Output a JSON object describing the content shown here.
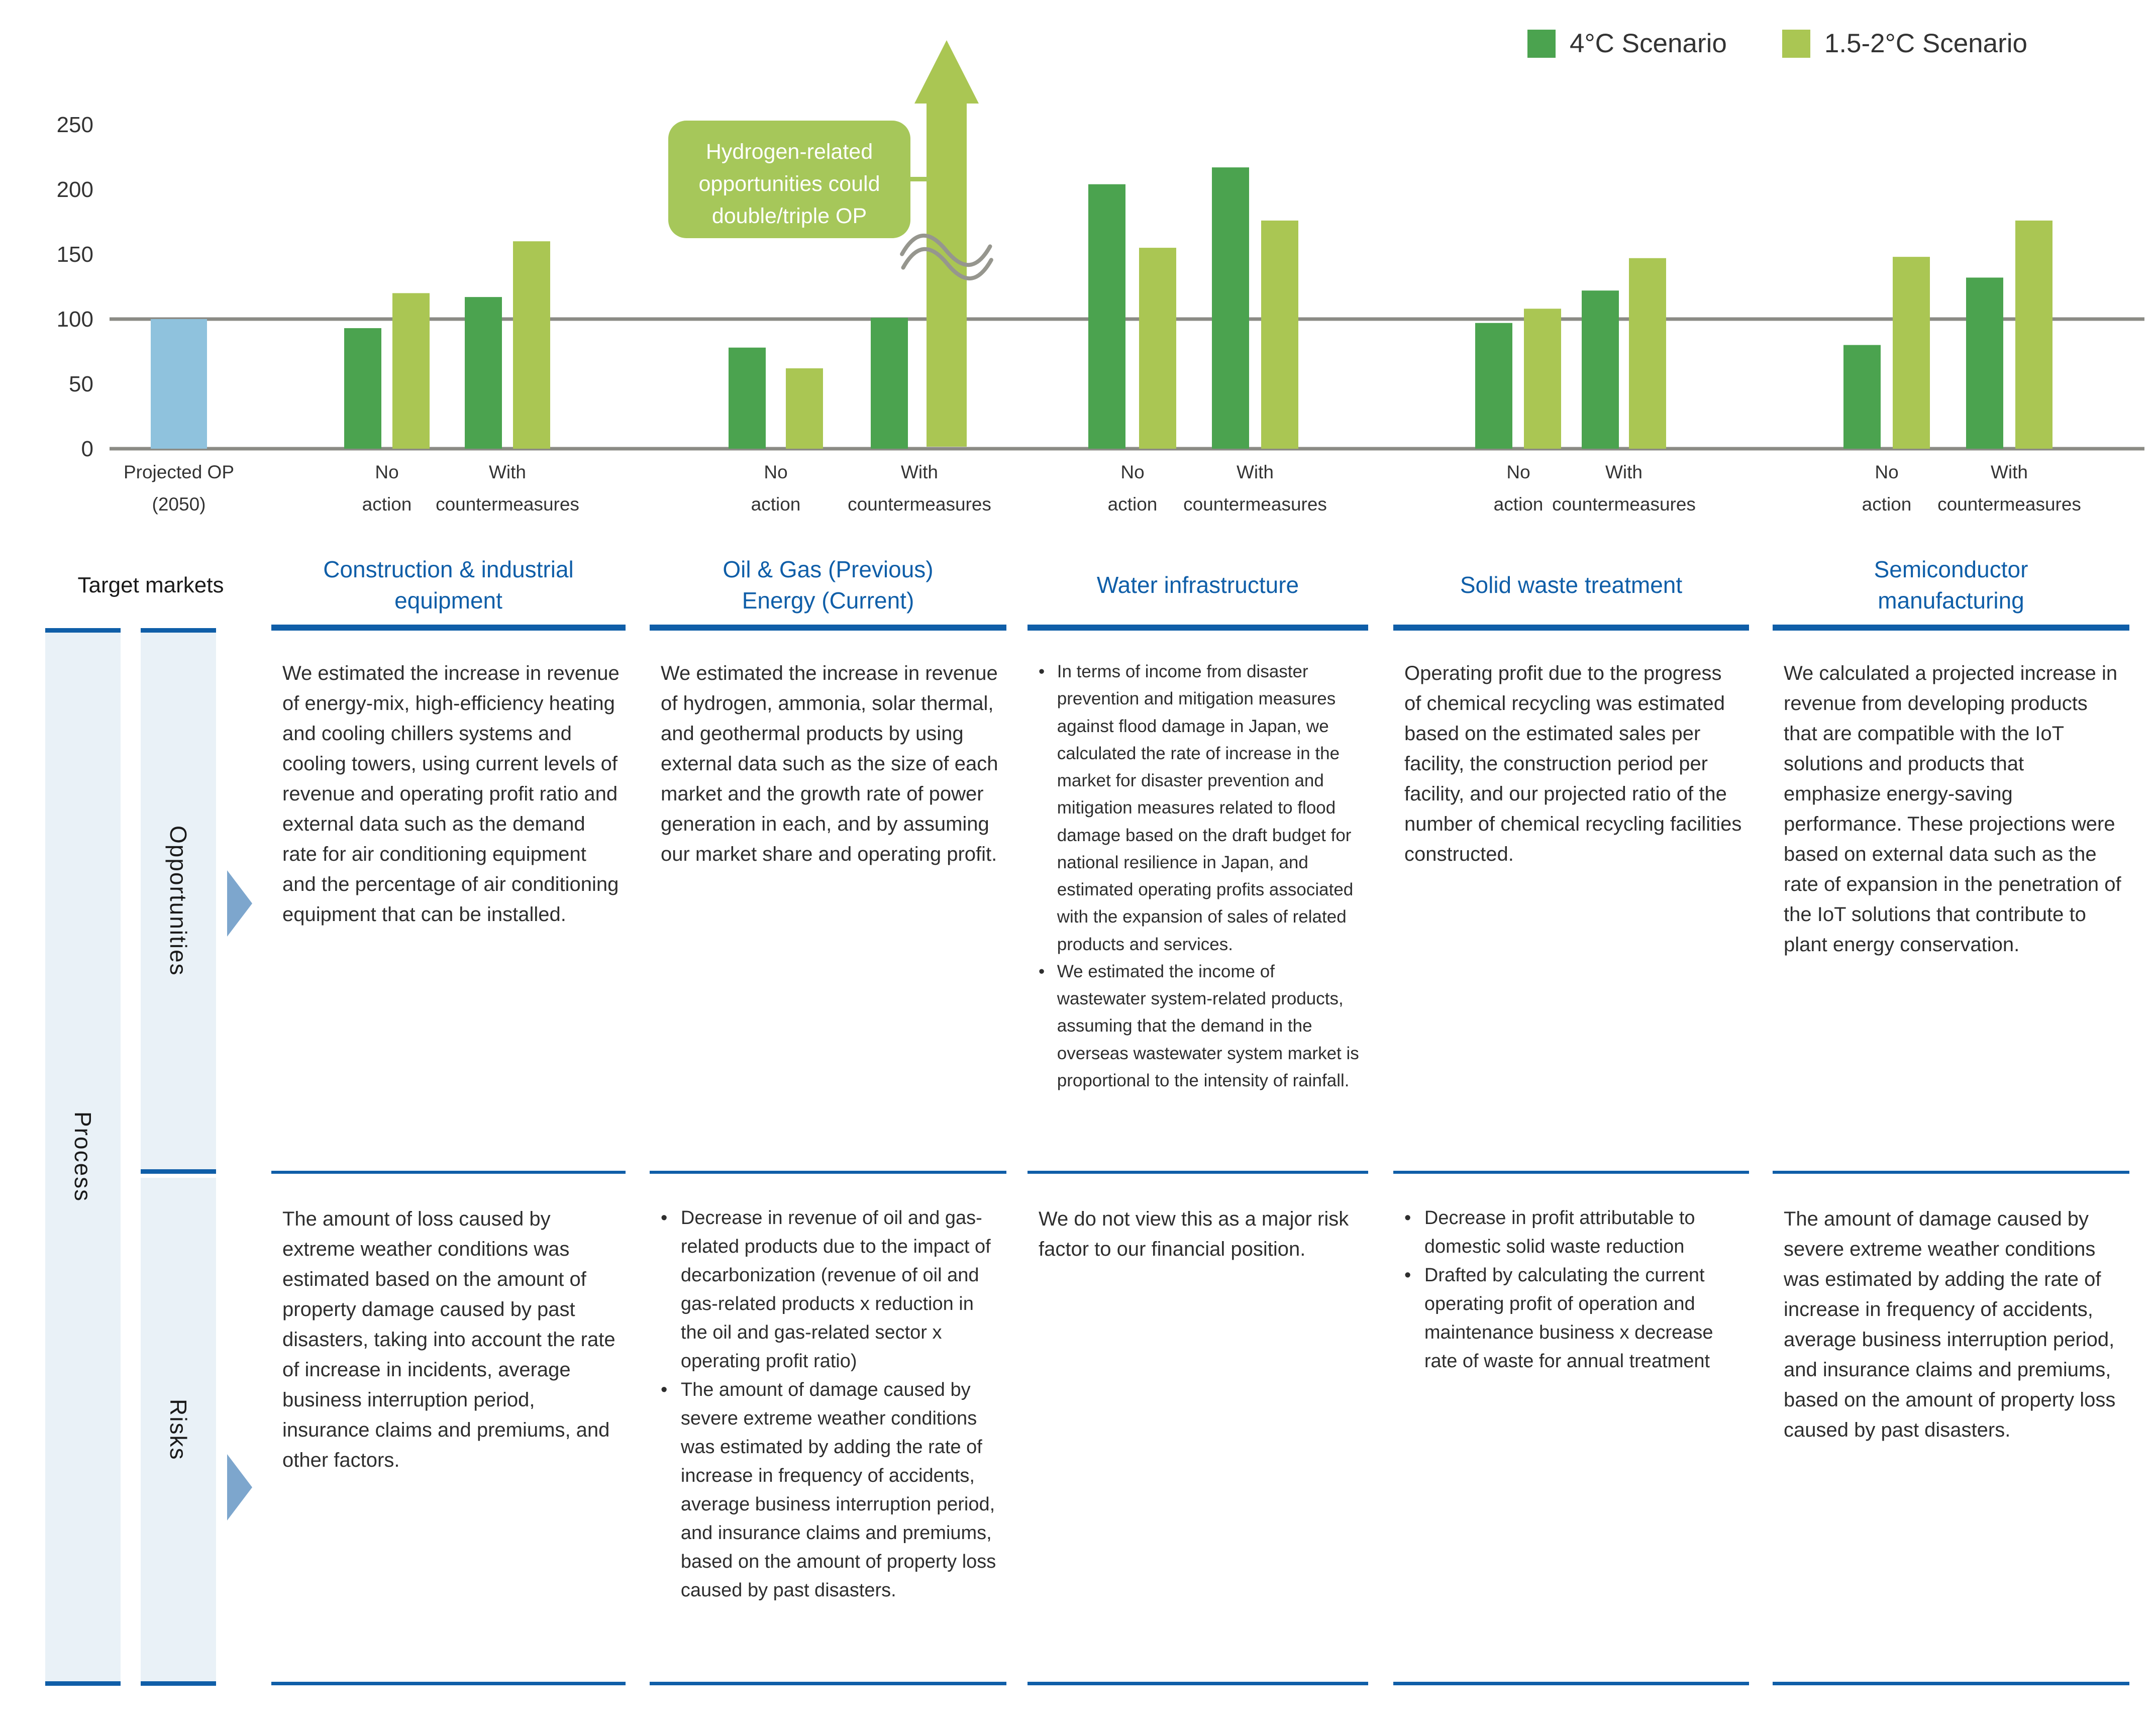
{
  "colors": {
    "scenario_4c": "#4ba34f",
    "scenario_15_2c": "#aac653",
    "projected_op_bar": "#8fc2dd",
    "reference_line": "#8b8b85",
    "table_accent_blue": "#0f5ea8",
    "row_label_background": "#e9f1f7",
    "pointer_arrow_blue": "#7da6cd",
    "callout_green": "#a6c75a"
  },
  "legend": {
    "items": [
      {
        "label": "4°C Scenario",
        "color": "#4ba34f"
      },
      {
        "label": "1.5-2°C Scenario",
        "color": "#aac653"
      }
    ]
  },
  "chart_data": {
    "type": "bar",
    "ylim": [
      0,
      260
    ],
    "yticks": [
      0,
      50,
      100,
      150,
      200,
      250
    ],
    "reference_line": 100,
    "grid": false,
    "legend_position": "top-right",
    "series": [
      {
        "name": "4°C Scenario",
        "color": "#4ba34f"
      },
      {
        "name": "1.5-2°C Scenario",
        "color": "#aac653"
      }
    ],
    "baseline_bar": {
      "label_lines": [
        "Projected OP",
        "(2050)"
      ],
      "value": 100,
      "color": "#8fc2dd"
    },
    "condition_labels": {
      "no_action": [
        "No",
        "action"
      ],
      "with_countermeasures": [
        "With",
        "countermeasures"
      ]
    },
    "groups": [
      {
        "market": "Construction & industrial equipment",
        "no_action": {
          "4c": 93,
          "15_2c": 120
        },
        "with_countermeasures": {
          "4c": 117,
          "15_2c": 160
        }
      },
      {
        "market": "Oil & Gas (Previous) Energy (Current)",
        "no_action": {
          "4c": 78,
          "15_2c": 62
        },
        "with_countermeasures": {
          "4c": 101,
          "15_2c": "off-scale-arrow"
        }
      },
      {
        "market": "Water infrastructure",
        "no_action": {
          "4c": 204,
          "15_2c": 155
        },
        "with_countermeasures": {
          "4c": 217,
          "15_2c": 176
        }
      },
      {
        "market": "Solid waste treatment",
        "no_action": {
          "4c": 97,
          "15_2c": 108
        },
        "with_countermeasures": {
          "4c": 122,
          "15_2c": 147
        }
      },
      {
        "market": "Semiconductor manufacturing",
        "no_action": {
          "4c": 80,
          "15_2c": 148
        },
        "with_countermeasures": {
          "4c": 132,
          "15_2c": 176
        }
      }
    ],
    "annotation": {
      "text_lines": [
        "Hydrogen-related",
        "opportunities could",
        "double/triple OP"
      ],
      "attached_to": "Oil & Gas with countermeasures 1.5-2°C arrow",
      "color": "#a6c75a"
    },
    "axis_break_on_arrow": true
  },
  "table": {
    "row_header": "Target markets",
    "process_label": "Process",
    "row_labels": [
      "Opportunities",
      "Risks"
    ],
    "columns": [
      {
        "header_lines": [
          "Construction & industrial",
          "equipment"
        ],
        "opportunities": {
          "bullets": false,
          "items": [
            "We estimated the increase in revenue of energy-mix, high-efficiency heating and cooling chillers systems and cooling towers, using current levels of revenue and operating profit ratio and external data such as the demand rate for air conditioning equipment and the percentage of air conditioning equipment that can be installed."
          ]
        },
        "risks": {
          "bullets": false,
          "items": [
            "The amount of loss caused by extreme weather conditions was estimated based on the amount of property damage caused by past disasters, taking into account the rate of increase in incidents, average business interruption period, insurance claims and premiums, and other factors."
          ]
        }
      },
      {
        "header_lines": [
          "Oil & Gas (Previous)",
          "Energy (Current)"
        ],
        "opportunities": {
          "bullets": false,
          "items": [
            "We estimated the increase in revenue of hydrogen, ammonia, solar thermal, and geothermal products by using external data such as the size of each market and the growth rate of power generation in each, and by assuming our market share and operating profit."
          ]
        },
        "risks": {
          "bullets": true,
          "items": [
            "Decrease in revenue of oil and gas-related products due to the impact of decarbonization (revenue of oil and gas-related products x reduction in the oil and gas-related sector x operating profit ratio)",
            "The amount of damage caused by severe extreme weather conditions was estimated by adding the rate of increase in frequency of accidents, average business interruption period, and insurance claims and premiums, based on the amount of property loss caused by past disasters."
          ]
        }
      },
      {
        "header_lines": [
          "Water infrastructure"
        ],
        "opportunities": {
          "bullets": true,
          "items": [
            "In terms of income from disaster prevention and mitigation measures against flood damage in Japan, we calculated the rate of increase in the market for disaster prevention and mitigation measures related to flood damage based on the draft budget for national resilience in Japan, and estimated operating profits associated with the expansion of sales of related products and services.",
            "We estimated the income of wastewater system-related products, assuming that the demand in the overseas wastewater system market is proportional to the intensity of rainfall."
          ]
        },
        "risks": {
          "bullets": false,
          "items": [
            "We do not view this as a major risk factor to our financial position."
          ]
        }
      },
      {
        "header_lines": [
          "Solid waste treatment"
        ],
        "opportunities": {
          "bullets": false,
          "items": [
            "Operating profit due to the progress of chemical recycling was estimated based on the estimated sales per facility, the construction period per facility, and our projected ratio of the number of chemical recycling facilities constructed."
          ]
        },
        "risks": {
          "bullets": true,
          "items": [
            "Decrease in profit attributable to domestic solid waste reduction",
            "Drafted by calculating the current operating profit of operation and maintenance business x decrease rate of waste for annual treatment"
          ]
        }
      },
      {
        "header_lines": [
          "Semiconductor",
          "manufacturing"
        ],
        "opportunities": {
          "bullets": false,
          "items": [
            "We calculated a projected increase in revenue from developing products that are compatible with the IoT solutions and products that emphasize energy-saving performance. These projections were based on external data such as the rate of expansion in the penetration of the IoT solutions that contribute to plant energy conservation."
          ]
        },
        "risks": {
          "bullets": false,
          "items": [
            "The amount of damage caused by severe extreme weather conditions was estimated by adding the rate of increase in frequency of accidents, average business interruption period, and insurance claims and premiums, based on the amount of property loss caused by past disasters."
          ]
        }
      }
    ]
  }
}
